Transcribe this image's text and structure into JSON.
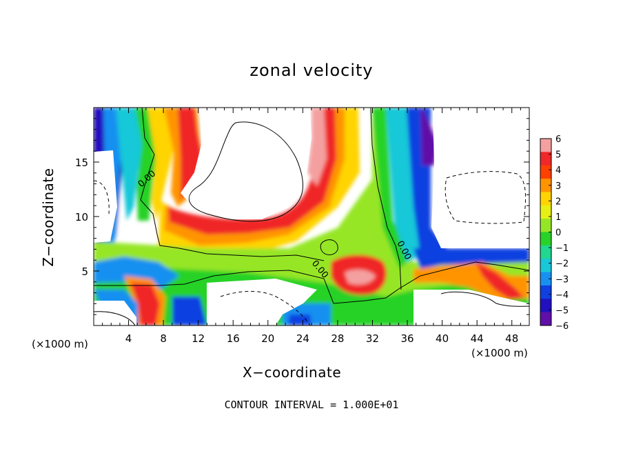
{
  "chart_data": {
    "type": "heatmap",
    "title": "zonal velocity",
    "xlabel": "X−coordinate",
    "ylabel": "Z−coordinate",
    "x_unit": "(×1000 m)",
    "y_unit": "(×1000 m)",
    "x_ticks": [
      "4",
      "8",
      "12",
      "16",
      "20",
      "24",
      "28",
      "32",
      "36",
      "40",
      "44",
      "48"
    ],
    "y_ticks": [
      "5",
      "10",
      "15"
    ],
    "xlim": [
      0,
      50
    ],
    "ylim": [
      0,
      20
    ],
    "colorbar": {
      "labels": [
        "6",
        "5",
        "4",
        "3",
        "2",
        "1",
        "0",
        "−1",
        "−2",
        "−3",
        "−4",
        "−5",
        "−6"
      ],
      "range": [
        -6,
        6
      ],
      "colors": [
        "#f4a0a0",
        "#f02828",
        "#ff4000",
        "#ff9400",
        "#ffd400",
        "#e6f014",
        "#96e628",
        "#28d228",
        "#20d890",
        "#18c8d8",
        "#1890f0",
        "#1040e0",
        "#2010c0",
        "#6010a8"
      ]
    },
    "contour_labels": [
      "0.00",
      "0.00",
      "0.00"
    ],
    "footer": "CONTOUR INTERVAL = 1.000E+01",
    "bands": [
      {
        "x_center": 2,
        "z_top": 20,
        "value": -5
      },
      {
        "x_center": 3.3,
        "z_top": 20,
        "value": -3
      },
      {
        "x_center": 5,
        "z_top": 20,
        "value": 0
      },
      {
        "x_center": 8.3,
        "z_top": 20,
        "value": 3
      },
      {
        "x_center": 10.5,
        "z_top": 20,
        "value": 5
      },
      {
        "x_center": 27,
        "z_top": 20,
        "value": 4
      },
      {
        "x_center": 29,
        "z_top": 20,
        "value": 2
      },
      {
        "x_center": 32,
        "z_top": 20,
        "value": 0
      },
      {
        "x_center": 35,
        "z_top": 20,
        "value": -2
      },
      {
        "x_center": 38,
        "z_top": 20,
        "value": -5
      }
    ]
  }
}
